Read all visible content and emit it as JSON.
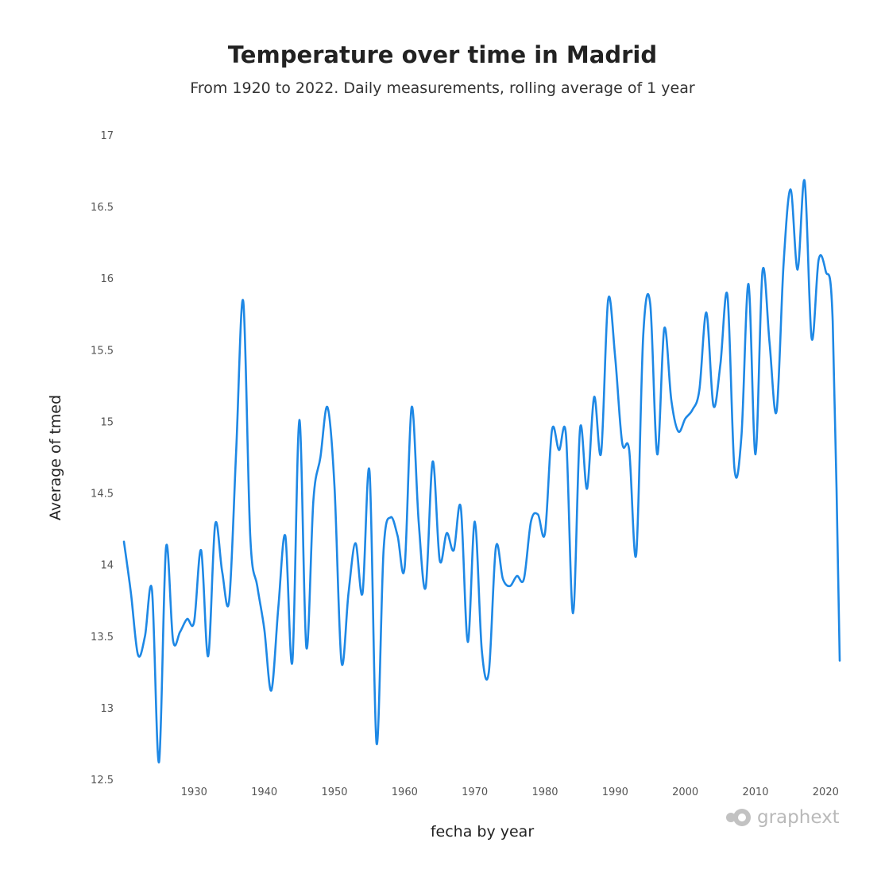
{
  "chart_data": {
    "type": "line",
    "title": "Temperature over time in Madrid",
    "subtitle": "From 1920 to 2022. Daily measurements, rolling average of 1 year",
    "xlabel": "fecha by year",
    "ylabel": "Average of tmed",
    "xlim": [
      1920,
      2022
    ],
    "ylim": [
      12.5,
      17
    ],
    "x_ticks": [
      1930,
      1940,
      1950,
      1960,
      1970,
      1980,
      1990,
      2000,
      2010,
      2020
    ],
    "y_ticks": [
      12.5,
      13,
      13.5,
      14,
      14.5,
      15,
      15.5,
      16,
      16.5,
      17
    ],
    "series": [
      {
        "name": "Average of tmed",
        "color": "#1e88e5",
        "x": [
          1920,
          1921,
          1922,
          1923,
          1924,
          1925,
          1926,
          1927,
          1928,
          1929,
          1930,
          1931,
          1932,
          1933,
          1934,
          1935,
          1936,
          1937,
          1938,
          1939,
          1940,
          1941,
          1942,
          1943,
          1944,
          1945,
          1946,
          1947,
          1948,
          1949,
          1950,
          1951,
          1952,
          1953,
          1954,
          1955,
          1956,
          1957,
          1958,
          1959,
          1960,
          1961,
          1962,
          1963,
          1964,
          1965,
          1966,
          1967,
          1968,
          1969,
          1970,
          1971,
          1972,
          1973,
          1974,
          1975,
          1976,
          1977,
          1978,
          1979,
          1980,
          1981,
          1982,
          1983,
          1984,
          1985,
          1986,
          1987,
          1988,
          1989,
          1990,
          1991,
          1992,
          1993,
          1994,
          1995,
          1996,
          1997,
          1998,
          1999,
          2000,
          2001,
          2002,
          2003,
          2004,
          2005,
          2006,
          2007,
          2008,
          2009,
          2010,
          2011,
          2012,
          2013,
          2014,
          2015,
          2016,
          2017,
          2018,
          2019,
          2020,
          2021,
          2022
        ],
        "values": [
          14.16,
          13.8,
          13.37,
          13.5,
          13.82,
          12.62,
          14.12,
          13.47,
          13.53,
          13.62,
          13.6,
          14.1,
          13.36,
          14.28,
          13.95,
          13.75,
          14.8,
          15.84,
          14.2,
          13.85,
          13.55,
          13.12,
          13.7,
          14.2,
          13.32,
          15.01,
          13.42,
          14.45,
          14.75,
          15.1,
          14.55,
          13.32,
          13.8,
          14.15,
          13.8,
          14.65,
          12.75,
          14.1,
          14.33,
          14.2,
          13.98,
          15.1,
          14.3,
          13.84,
          14.72,
          14.03,
          14.22,
          14.1,
          14.4,
          13.46,
          14.3,
          13.4,
          13.25,
          14.12,
          13.9,
          13.85,
          13.92,
          13.9,
          14.3,
          14.35,
          14.22,
          14.94,
          14.8,
          14.9,
          13.66,
          14.95,
          14.53,
          15.17,
          14.78,
          15.85,
          15.45,
          14.85,
          14.8,
          14.07,
          15.6,
          15.82,
          14.77,
          15.65,
          15.15,
          14.93,
          15.02,
          15.08,
          15.22,
          15.76,
          15.11,
          15.4,
          15.88,
          14.67,
          14.9,
          15.96,
          14.77,
          16.05,
          15.55,
          15.07,
          16.1,
          16.62,
          16.06,
          16.68,
          15.58,
          16.13,
          16.05,
          15.7,
          13.33
        ]
      }
    ]
  },
  "watermark": {
    "text": "graphext"
  }
}
